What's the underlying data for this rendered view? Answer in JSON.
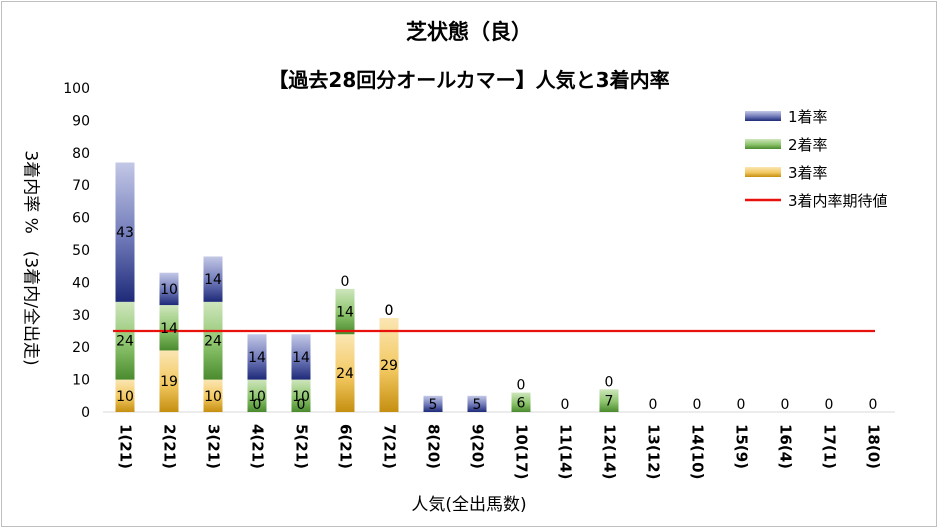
{
  "chart_data": {
    "type": "bar",
    "title": "芝状態（良）",
    "subtitle": "【過去28回分オールカマー】人気と3着内率",
    "xlabel": "人気(全出馬数)",
    "ylabel": "3着内率 %　(3着内/全出走)",
    "ylim": [
      0,
      100
    ],
    "yticks": [
      0,
      10,
      20,
      30,
      40,
      50,
      60,
      70,
      80,
      90,
      100
    ],
    "categories": [
      "1(21)",
      "2(21)",
      "3(21)",
      "4(21)",
      "5(21)",
      "6(21)",
      "7(21)",
      "8(20)",
      "9(20)",
      "10(17)",
      "11(14)",
      "12(14)",
      "13(12)",
      "14(10)",
      "15(9)",
      "16(4)",
      "17(1)",
      "18(0)"
    ],
    "stacked": true,
    "series": [
      {
        "name": "3着率",
        "color": "#d9a31f",
        "values": [
          10,
          19,
          10,
          0,
          0,
          24,
          29,
          0,
          0,
          0,
          0,
          0,
          0,
          0,
          0,
          0,
          0,
          0
        ],
        "labels": [
          "10",
          "19",
          "10",
          "0",
          "0",
          "24",
          "29",
          "",
          "",
          "",
          "",
          "",
          "",
          "",
          "",
          "",
          "",
          ""
        ]
      },
      {
        "name": "2着率",
        "color": "#5a9a3a",
        "values": [
          24,
          14,
          24,
          10,
          10,
          14,
          0,
          0,
          0,
          6,
          0,
          7,
          0,
          0,
          0,
          0,
          0,
          0
        ],
        "labels": [
          "24",
          "14",
          "24",
          "10",
          "10",
          "14",
          "0",
          "",
          "",
          "6",
          "",
          "7",
          "",
          "",
          "",
          "",
          "",
          ""
        ]
      },
      {
        "name": "1着率",
        "color": "#2f3c8a",
        "values": [
          43,
          10,
          14,
          14,
          14,
          0,
          0,
          5,
          5,
          0,
          0,
          0,
          0,
          0,
          0,
          0,
          0,
          0
        ],
        "labels": [
          "43",
          "10",
          "14",
          "14",
          "14",
          "0",
          "0",
          "5",
          "5",
          "0",
          "0",
          "0",
          "0",
          "0",
          "0",
          "0",
          "0",
          "0"
        ]
      }
    ],
    "reference_line": {
      "name": "3着内率期待値",
      "color": "#e8120c",
      "value": 25
    },
    "legend": {
      "position": "top-right",
      "order": [
        "1着率",
        "2着率",
        "3着率",
        "3着内率期待値"
      ]
    },
    "grid": false
  }
}
